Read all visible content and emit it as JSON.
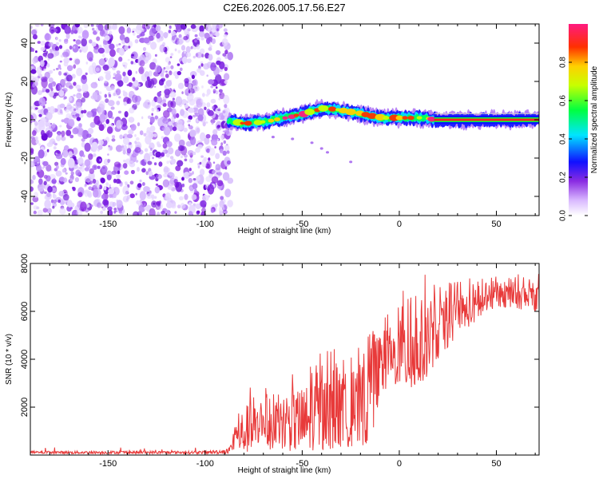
{
  "title": "C2E6.2026.005.17.56.E27",
  "chart_data": [
    {
      "type": "heatmap",
      "name": "spectrogram",
      "xlabel": "Height of straight line (km)",
      "ylabel": "Frequency (Hz)",
      "xlim": [
        -190,
        72
      ],
      "ylim": [
        -50,
        50
      ],
      "xticks": [
        -150,
        -100,
        -50,
        0,
        50
      ],
      "xtick_labels": [
        "-150",
        "-100",
        "-50",
        "0",
        "50"
      ],
      "yticks": [
        -40,
        -20,
        0,
        20,
        40
      ],
      "ytick_labels": [
        "-40",
        "-20",
        "0",
        "20",
        "40"
      ],
      "colorbar": {
        "label": "Normalized spectral amplitude",
        "range": [
          0,
          1
        ],
        "ticks": [
          0,
          0.2,
          0.4,
          0.6,
          0.8
        ],
        "tick_labels": [
          "0.0",
          "0.2",
          "0.4",
          "0.6",
          "0.8"
        ],
        "colormap": "rainbow (violet to magenta)"
      },
      "noise_region_x": [
        -190,
        -87
      ],
      "signal_track": [
        {
          "x": -88,
          "f": -1
        },
        {
          "x": -80,
          "f": -2
        },
        {
          "x": -70,
          "f": -1
        },
        {
          "x": -60,
          "f": 1
        },
        {
          "x": -50,
          "f": 3
        },
        {
          "x": -40,
          "f": 6
        },
        {
          "x": -30,
          "f": 5
        },
        {
          "x": -20,
          "f": 3
        },
        {
          "x": -10,
          "f": 1
        },
        {
          "x": 0,
          "f": 1
        },
        {
          "x": 10,
          "f": 1
        },
        {
          "x": 20,
          "f": 0
        },
        {
          "x": 40,
          "f": 0
        },
        {
          "x": 60,
          "f": 0
        },
        {
          "x": 72,
          "f": 0
        }
      ]
    },
    {
      "type": "line",
      "name": "snr",
      "xlabel": "Height of straight line (km)",
      "ylabel": "SNR (10 * v/v)",
      "xlim": [
        -190,
        72
      ],
      "ylim": [
        0,
        8000
      ],
      "xticks": [
        -150,
        -100,
        -50,
        0,
        50
      ],
      "xtick_labels": [
        "-150",
        "-100",
        "-50",
        "0",
        "50"
      ],
      "yticks": [
        2000,
        4000,
        6000,
        8000
      ],
      "ytick_labels": [
        "2000",
        "4000",
        "6000",
        "8000"
      ],
      "color": "#e83a3a",
      "envelope": [
        {
          "x": -190,
          "lo": 50,
          "hi": 250
        },
        {
          "x": -100,
          "lo": 50,
          "hi": 250
        },
        {
          "x": -88,
          "lo": 50,
          "hi": 400
        },
        {
          "x": -80,
          "lo": 100,
          "hi": 2800
        },
        {
          "x": -60,
          "lo": 150,
          "hi": 3000
        },
        {
          "x": -40,
          "lo": 200,
          "hi": 4500
        },
        {
          "x": -20,
          "lo": 400,
          "hi": 4500
        },
        {
          "x": -15,
          "lo": 400,
          "hi": 7000
        },
        {
          "x": -10,
          "lo": 2500,
          "hi": 6000
        },
        {
          "x": 0,
          "lo": 3000,
          "hi": 6500
        },
        {
          "x": 8,
          "lo": 2500,
          "hi": 8000
        },
        {
          "x": 20,
          "lo": 4000,
          "hi": 7000
        },
        {
          "x": 30,
          "lo": 5000,
          "hi": 7400
        },
        {
          "x": 50,
          "lo": 6200,
          "hi": 7500
        },
        {
          "x": 72,
          "lo": 6000,
          "hi": 7600
        }
      ]
    }
  ]
}
